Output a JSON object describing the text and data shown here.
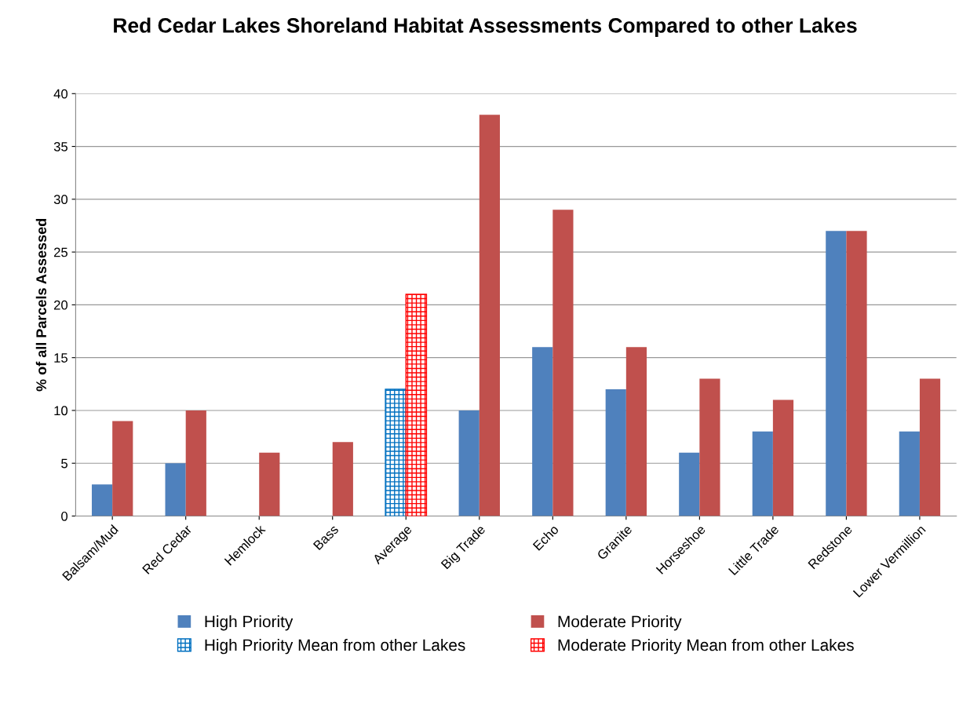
{
  "chart_data": {
    "type": "bar",
    "title": "Red Cedar Lakes Shoreland Habitat Assessments Compared to other Lakes",
    "ylabel": "% of all Parcels Assessed",
    "categories": [
      "Balsam/Mud",
      "Red Cedar",
      "Hemlock",
      "Bass",
      "Average",
      "Big Trade",
      "Echo",
      "Granite",
      "Horseshoe",
      "Little Trade",
      "Redstone",
      "Lower Vermillion"
    ],
    "series": [
      {
        "name": "High Priority",
        "color": "#4f81bd",
        "values": [
          3,
          5,
          null,
          null,
          null,
          10,
          16,
          12,
          6,
          8,
          27,
          8
        ]
      },
      {
        "name": "Moderate Priority",
        "color": "#c0504d",
        "values": [
          9,
          10,
          6,
          7,
          null,
          38,
          29,
          16,
          13,
          11,
          27,
          13
        ]
      },
      {
        "name": "High Priority Mean from other Lakes",
        "color": "#0070c0",
        "values": [
          null,
          null,
          null,
          null,
          12,
          null,
          null,
          null,
          null,
          null,
          null,
          null
        ]
      },
      {
        "name": "Moderate Priority Mean from other Lakes",
        "color": "#ff0000",
        "values": [
          null,
          null,
          null,
          null,
          21,
          null,
          null,
          null,
          null,
          null,
          null,
          null
        ]
      }
    ],
    "ylim": [
      0,
      40
    ],
    "yticks": [
      0,
      5,
      10,
      15,
      20,
      25,
      30,
      35,
      40
    ],
    "grid": "y",
    "legend": "bottom"
  }
}
